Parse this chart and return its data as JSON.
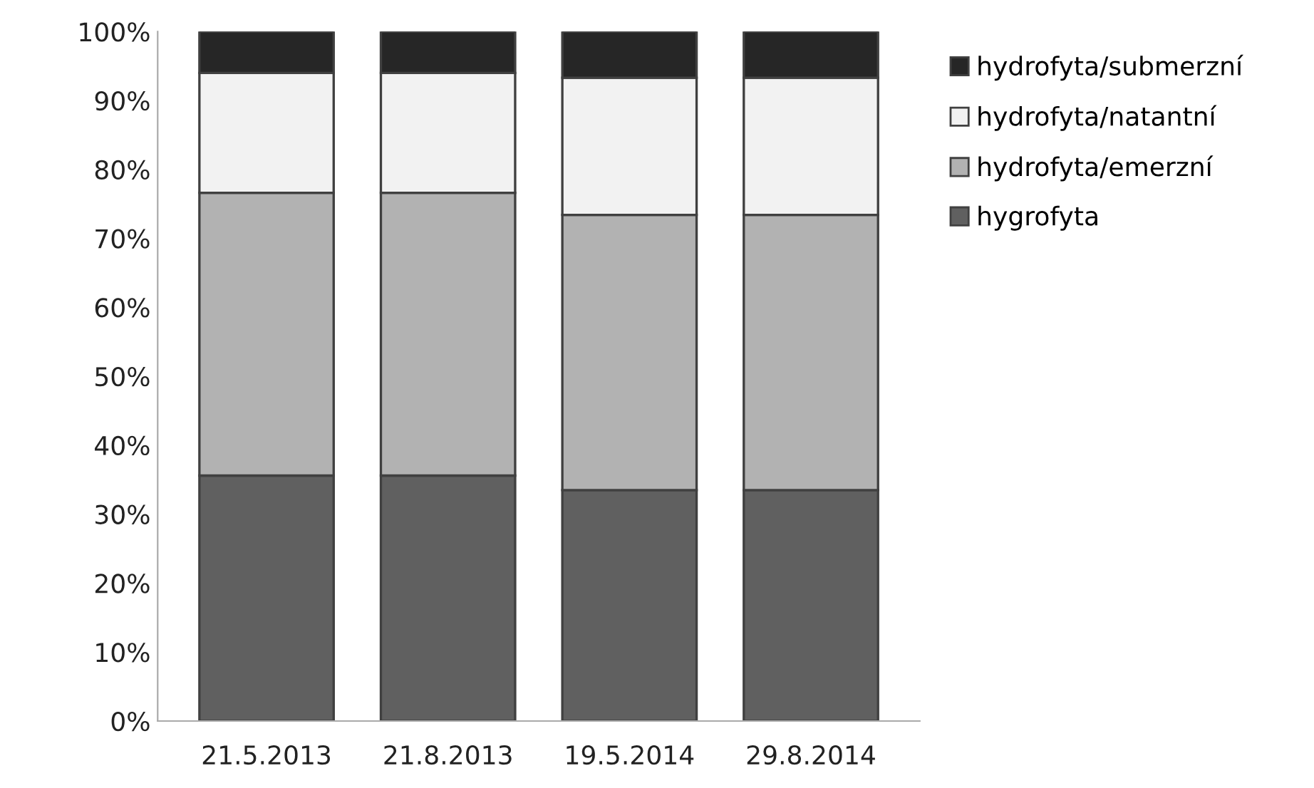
{
  "chart_data": {
    "type": "bar",
    "stacked": true,
    "categories": [
      "21.5.2013",
      "21.8.2013",
      "19.5.2014",
      "29.8.2014"
    ],
    "series": [
      {
        "name": "hygrofyta",
        "color": "#606060",
        "values": [
          35.6,
          35.6,
          33.5,
          33.5
        ]
      },
      {
        "name": "hydrofyta/emerzní",
        "color": "#b2b2b2",
        "values": [
          41.0,
          41.0,
          39.9,
          39.9
        ]
      },
      {
        "name": "hydrofyta/natantní",
        "color": "#f2f2f2",
        "values": [
          17.4,
          17.4,
          19.9,
          19.9
        ]
      },
      {
        "name": "hydrofyta/submerzní",
        "color": "#262626",
        "values": [
          6.0,
          6.0,
          6.7,
          6.7
        ]
      }
    ],
    "ylim": [
      0,
      100
    ],
    "yticks": [
      {
        "value": 0,
        "label": "0%"
      },
      {
        "value": 10,
        "label": "10%"
      },
      {
        "value": 20,
        "label": "20%"
      },
      {
        "value": 30,
        "label": "30%"
      },
      {
        "value": 40,
        "label": "40%"
      },
      {
        "value": 50,
        "label": "50%"
      },
      {
        "value": 60,
        "label": "60%"
      },
      {
        "value": 70,
        "label": "70%"
      },
      {
        "value": 80,
        "label": "80%"
      },
      {
        "value": 90,
        "label": "90%"
      },
      {
        "value": 100,
        "label": "100%"
      }
    ],
    "grid": false,
    "legend": "right"
  }
}
